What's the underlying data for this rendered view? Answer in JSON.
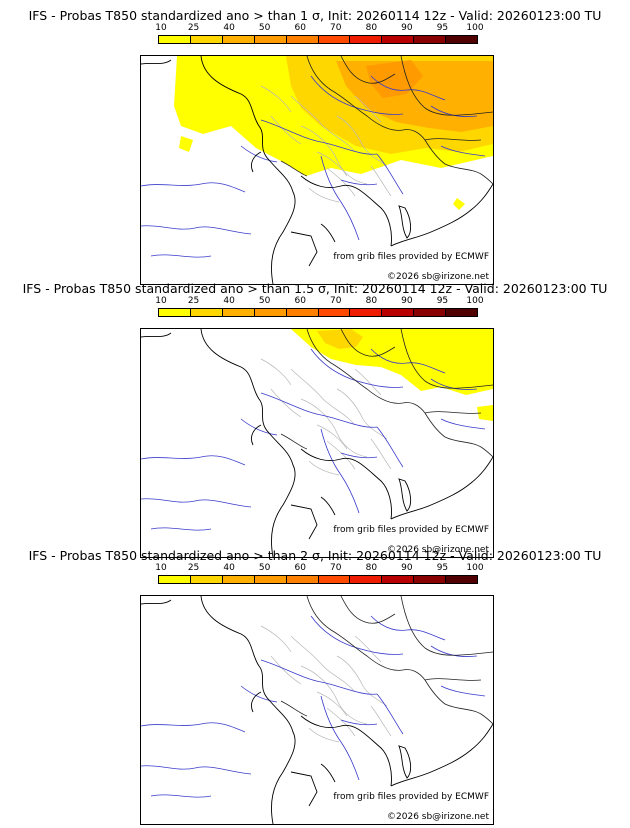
{
  "colorbar": {
    "ticks": [
      "10",
      "25",
      "40",
      "50",
      "60",
      "70",
      "80",
      "90",
      "95",
      "100"
    ],
    "colors": [
      "#ffff00",
      "#ffd700",
      "#ffb000",
      "#ff9a00",
      "#ff7f00",
      "#ff4a00",
      "#ee1c00",
      "#b80000",
      "#880000",
      "#500000"
    ]
  },
  "panels": [
    {
      "title": "IFS - Probas T850  standardized ano > than 1 σ, Init: 20260114 12z - Valid: 20260123:00 TU",
      "credit_source": "from grib files provided by ECMWF",
      "credit_copyright": "©2026 sb@irizone.net",
      "probability_shown": "10-60%"
    },
    {
      "title": "IFS - Probas T850  standardized ano > than 1.5 σ, Init: 20260114 12z - Valid: 20260123:00 TU",
      "credit_source": "from grib files provided by ECMWF",
      "credit_copyright": "©2026 sb@irizone.net",
      "probability_shown": "10-25%"
    },
    {
      "title": "IFS - Probas T850  standardized ano > than 2 σ, Init: 20260114 12z - Valid: 20260123:00 TU",
      "credit_source": "from grib files provided by ECMWF",
      "credit_copyright": "©2026 sb@irizone.net",
      "probability_shown": "none"
    }
  ]
}
